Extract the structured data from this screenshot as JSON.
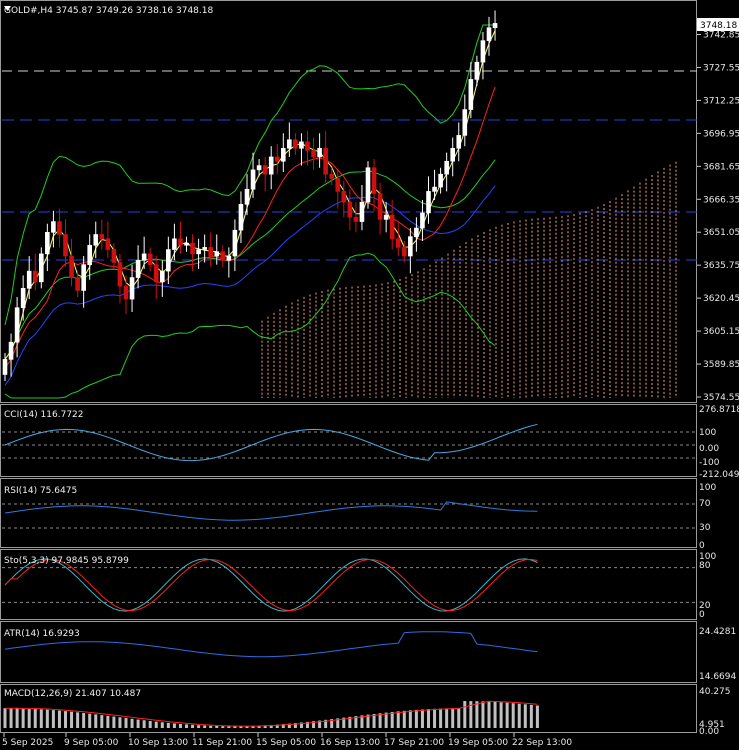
{
  "main_chart": {
    "symbol_line": "GOLD#,H4  3745.87 3749.26 3738.16 3748.18",
    "current_price": "3748.18",
    "price_labels": [
      "3742.85",
      "3727.55",
      "3712.25",
      "3696.95",
      "3681.65",
      "3666.35",
      "3651.05",
      "3635.75",
      "3620.45",
      "3605.15",
      "3589.85",
      "3574.55"
    ]
  },
  "indicators": {
    "cci": {
      "title": "CCI(14) 116.7722",
      "scale": [
        "276.8718",
        "100",
        "0.00",
        "-100",
        "-212.0498"
      ]
    },
    "rsi": {
      "title": "RSI(14) 75.6475",
      "scale": [
        "100",
        "70",
        "30",
        "0"
      ]
    },
    "stoch": {
      "title": "Sto(5,3,3) 97.9845 95.8799",
      "scale": [
        "100",
        "80",
        "20",
        "0"
      ]
    },
    "atr": {
      "title": "ATR(14) 16.9293",
      "scale": [
        "24.4281",
        "14.6694"
      ]
    },
    "macd": {
      "title": "MACD(12,26,9) 21.407 10.487",
      "scale": [
        "40.275",
        "4.951",
        "0.00"
      ]
    }
  },
  "time_axis": [
    "5 Sep 2025",
    "9 Sep 05:00",
    "10 Sep 13:00",
    "11 Sep 21:00",
    "15 Sep 05:00",
    "16 Sep 13:00",
    "17 Sep 21:00",
    "19 Sep 05:00",
    "22 Sep 13:00"
  ],
  "colors": {
    "bull_candle": "#ffffff",
    "bear_candle": "#d01010",
    "bull_body": "#1a2bdd",
    "bollinger": "#22cc22",
    "ma_yellow": "#ffff66",
    "ma_red": "#ff2020",
    "ma_blue": "#2244ff",
    "cloud": "#ffa070",
    "hline_blue": "#2a3fe0",
    "hline_white": "#cfcfcf",
    "cci": "#4aa8e0",
    "rsi": "#2b7de0",
    "stoch_main": "#3ab8c8",
    "stoch_signal": "#ff2020",
    "atr": "#2b6ee0",
    "macd_hist": "#c0c0c0",
    "macd_signal": "#ff2020"
  }
}
